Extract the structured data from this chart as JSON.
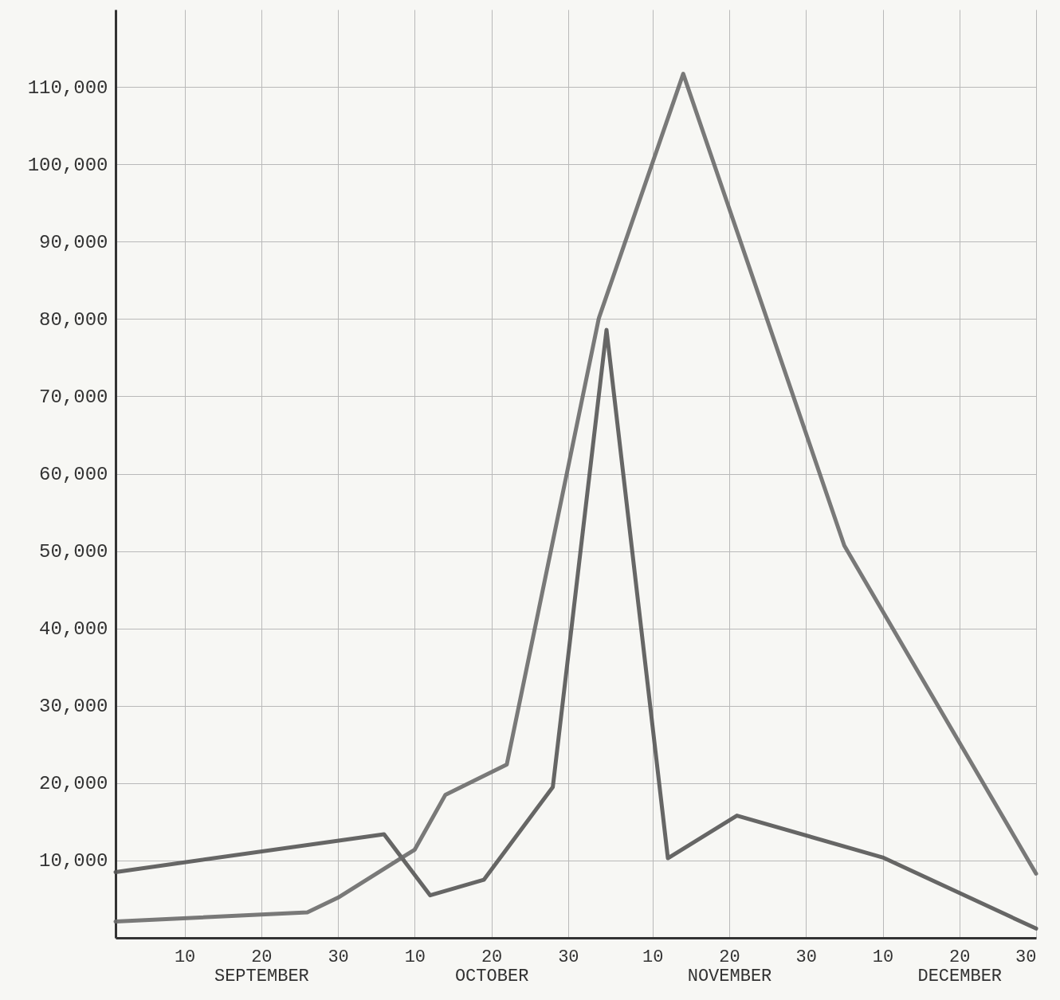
{
  "chart_data": {
    "type": "line",
    "series": [
      {
        "color": "#555555",
        "x": [
          "--09-01",
          "--10-06",
          "--10-12",
          "--10-19",
          "--10-28",
          "--11-04",
          "--11-12",
          "--11-21",
          "--12-10",
          "--12-30"
        ],
        "values": [
          8500,
          13400,
          5500,
          7500,
          19500,
          78600,
          10300,
          15800,
          10400,
          1200
        ]
      },
      {
        "color": "#6a6a6a",
        "x": [
          "--09-01",
          "--09-26",
          "--09-30",
          "--10-10",
          "--10-14",
          "--10-22",
          "--11-03",
          "--11-14",
          "--12-05",
          "--12-30"
        ],
        "values": [
          2100,
          3300,
          5200,
          11400,
          18500,
          22400,
          80100,
          111700,
          50700,
          8300
        ]
      }
    ],
    "xlim": [
      "--09-01",
      "--12-30"
    ],
    "xticks": [
      {
        "value": "--09-10",
        "label": "10"
      },
      {
        "value": "--09-20",
        "label": "20\nSEPTEMBER"
      },
      {
        "value": "--09-30",
        "label": "30"
      },
      {
        "value": "--10-10",
        "label": "10"
      },
      {
        "value": "--10-20",
        "label": "20\nOCTOBER"
      },
      {
        "value": "--10-30",
        "label": "30"
      },
      {
        "value": "--11-10",
        "label": "10"
      },
      {
        "value": "--11-20",
        "label": "20\nNOVEMBER"
      },
      {
        "value": "--11-30",
        "label": "30"
      },
      {
        "value": "--12-10",
        "label": "10"
      },
      {
        "value": "--12-20",
        "label": "20\nDECEMBER"
      },
      {
        "value": "--12-30",
        "label": "30"
      }
    ],
    "ylim": [
      0,
      120000
    ],
    "yticks": [
      {
        "value": 10000,
        "label": "10,000"
      },
      {
        "value": 20000,
        "label": "20,000"
      },
      {
        "value": 30000,
        "label": "30,000"
      },
      {
        "value": 40000,
        "label": "40,000"
      },
      {
        "value": 50000,
        "label": "50,000"
      },
      {
        "value": 60000,
        "label": "60,000"
      },
      {
        "value": 70000,
        "label": "70,000"
      },
      {
        "value": 80000,
        "label": "80,000"
      },
      {
        "value": 90000,
        "label": "90,000"
      },
      {
        "value": 100000,
        "label": "100,000"
      },
      {
        "value": 110000,
        "label": "110,000"
      }
    ],
    "grid": true,
    "marker": "none",
    "line_style": "solid"
  }
}
